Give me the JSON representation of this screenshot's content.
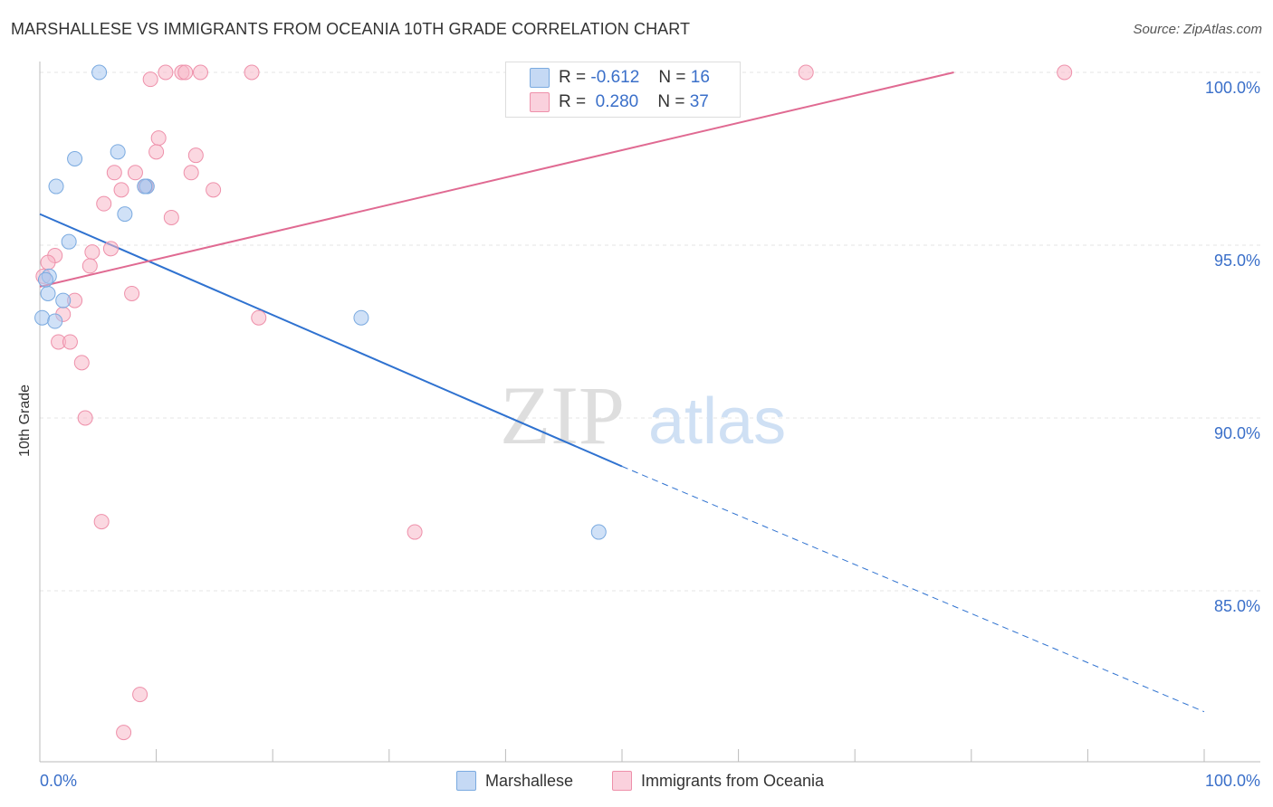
{
  "header": {
    "title": "MARSHALLESE VS IMMIGRANTS FROM OCEANIA 10TH GRADE CORRELATION CHART",
    "source": "Source: ZipAtlas.com"
  },
  "watermark": {
    "zip": "ZIP",
    "atlas": "atlas"
  },
  "legend": {
    "r_label": "R =",
    "n_label": "N =",
    "series": [
      {
        "name": "Marshallese",
        "r": "-0.612",
        "n": "16",
        "color": "#a9c8f0",
        "stroke": "#7aaae0",
        "line": "#2f72d0"
      },
      {
        "name": "Immigrants from Oceania",
        "r": "0.280",
        "n": "37",
        "color": "#f7b8c8",
        "stroke": "#ee90aa",
        "line": "#e06a92"
      }
    ]
  },
  "chart_data": {
    "type": "scatter",
    "title": "MARSHALLESE VS IMMIGRANTS FROM OCEANIA 10TH GRADE CORRELATION CHART",
    "xlabel": "",
    "ylabel": "10th Grade",
    "xlim": [
      0,
      100
    ],
    "ylim": [
      80.5,
      100.5
    ],
    "x_tick_labels": [
      "0.0%",
      "100.0%"
    ],
    "y_ticks": [
      85,
      90,
      95,
      100
    ],
    "y_tick_labels": [
      "85.0%",
      "90.0%",
      "95.0%",
      "100.0%"
    ],
    "grid": true,
    "series": [
      {
        "name": "Marshallese",
        "points": [
          [
            5.1,
            100.0
          ],
          [
            3.0,
            97.5
          ],
          [
            6.7,
            97.7
          ],
          [
            1.4,
            96.7
          ],
          [
            9.2,
            96.7
          ],
          [
            7.3,
            95.9
          ],
          [
            2.5,
            95.1
          ],
          [
            0.8,
            94.1
          ],
          [
            0.7,
            93.6
          ],
          [
            2.0,
            93.4
          ],
          [
            0.2,
            92.9
          ],
          [
            1.3,
            92.8
          ],
          [
            27.6,
            92.9
          ],
          [
            48.0,
            86.7
          ],
          [
            9.0,
            96.7
          ],
          [
            0.5,
            94.0
          ]
        ],
        "trend": {
          "x0": 0,
          "y0": 95.9,
          "x1": 50,
          "y1": 88.6,
          "dash_to_x": 100,
          "dash_to_y": 81.5
        }
      },
      {
        "name": "Immigrants from Oceania",
        "points": [
          [
            9.5,
            99.8
          ],
          [
            10.8,
            100.0
          ],
          [
            12.2,
            100.0
          ],
          [
            12.5,
            100.0
          ],
          [
            13.8,
            100.0
          ],
          [
            18.2,
            100.0
          ],
          [
            65.8,
            100.0
          ],
          [
            88.0,
            100.0
          ],
          [
            10.2,
            98.1
          ],
          [
            10.0,
            97.7
          ],
          [
            13.4,
            97.6
          ],
          [
            6.4,
            97.1
          ],
          [
            8.2,
            97.1
          ],
          [
            13.0,
            97.1
          ],
          [
            7.0,
            96.6
          ],
          [
            9.1,
            96.7
          ],
          [
            14.9,
            96.6
          ],
          [
            5.5,
            96.2
          ],
          [
            11.3,
            95.8
          ],
          [
            6.1,
            94.9
          ],
          [
            4.5,
            94.8
          ],
          [
            1.3,
            94.7
          ],
          [
            0.7,
            94.5
          ],
          [
            4.3,
            94.4
          ],
          [
            0.3,
            94.1
          ],
          [
            7.9,
            93.6
          ],
          [
            3.0,
            93.4
          ],
          [
            2.0,
            93.0
          ],
          [
            18.8,
            92.9
          ],
          [
            1.6,
            92.2
          ],
          [
            2.6,
            92.2
          ],
          [
            3.6,
            91.6
          ],
          [
            3.9,
            90.0
          ],
          [
            5.3,
            87.0
          ],
          [
            32.2,
            86.7
          ],
          [
            8.6,
            82.0
          ],
          [
            7.2,
            80.9
          ]
        ],
        "trend": {
          "x0": 0,
          "y0": 93.8,
          "x1": 78.5,
          "y1": 100.0
        }
      }
    ]
  }
}
